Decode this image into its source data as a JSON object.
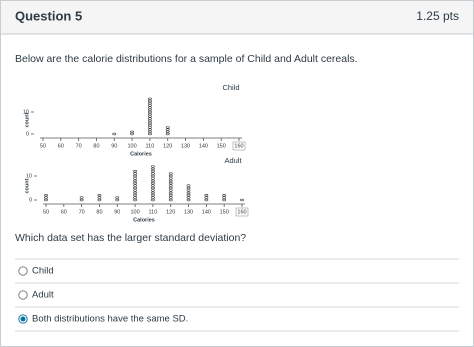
{
  "header": {
    "title": "Question 5",
    "points": "1.25 pts"
  },
  "prompt": "Below are the calorie distributions for a sample of Child and Adult cereals.",
  "plots": [
    {
      "title": "Child",
      "x_label": "Calories",
      "y_label": "count",
      "x": [
        90,
        100,
        110,
        120
      ],
      "counts": [
        1,
        2,
        17,
        4
      ],
      "xticks": [
        50,
        60,
        70,
        80,
        90,
        100,
        110,
        120,
        130,
        140,
        150,
        160
      ],
      "yticks": [
        0,
        10
      ]
    },
    {
      "title": "Adult",
      "x_label": "Calories",
      "y_label": "count",
      "x": [
        50,
        70,
        80,
        90,
        100,
        110,
        120,
        130,
        140,
        150,
        160
      ],
      "counts": [
        3,
        2,
        3,
        2,
        13,
        15,
        12,
        7,
        3,
        3,
        1
      ],
      "xticks": [
        50,
        60,
        70,
        80,
        90,
        100,
        110,
        120,
        130,
        140,
        150,
        160
      ],
      "yticks": [
        0,
        10
      ]
    }
  ],
  "question": "Which data set has the larger standard deviation?",
  "options": [
    "Child",
    "Adult",
    "Both distributions have the same SD."
  ],
  "selected": 2
}
